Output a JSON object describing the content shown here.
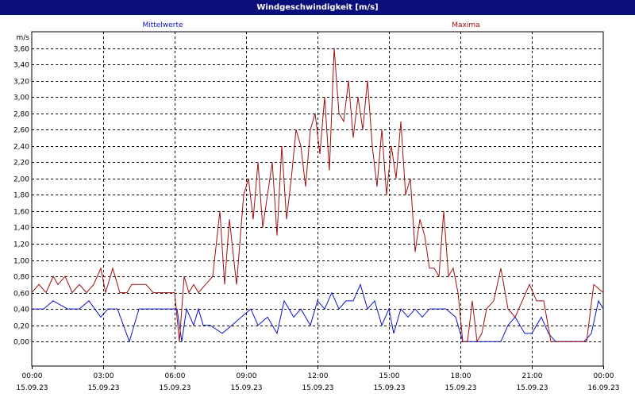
{
  "title": "Windgeschwindigkeit [m/s]",
  "colors": {
    "titlebar": "#0b0f7a",
    "mittelwerte": "#0a14c8",
    "maxima": "#a01010",
    "grid": "#000000"
  },
  "chart_data": {
    "type": "line",
    "title": "Windgeschwindigkeit [m/s]",
    "ylabel": "m/s",
    "xlabel": "",
    "ylim": [
      -0.3,
      3.8
    ],
    "xlim": [
      0,
      24
    ],
    "grid": true,
    "legend_placement": "top",
    "yticks": [
      "0,00",
      "0,20",
      "0,40",
      "0,60",
      "0,80",
      "1,00",
      "1,20",
      "1,40",
      "1,60",
      "1,80",
      "2,00",
      "2,20",
      "2,40",
      "2,60",
      "2,80",
      "3,00",
      "3,20",
      "3,40",
      "3,60"
    ],
    "ytick_values": [
      0,
      0.2,
      0.4,
      0.6,
      0.8,
      1.0,
      1.2,
      1.4,
      1.6,
      1.8,
      2.0,
      2.2,
      2.4,
      2.6,
      2.8,
      3.0,
      3.2,
      3.4,
      3.6
    ],
    "xticks": [
      {
        "time": "00:00",
        "date": "15.09.23",
        "hour": 0
      },
      {
        "time": "03:00",
        "date": "15.09.23",
        "hour": 3
      },
      {
        "time": "06:00",
        "date": "15.09.23",
        "hour": 6
      },
      {
        "time": "09:00",
        "date": "15.09.23",
        "hour": 9
      },
      {
        "time": "12:00",
        "date": "15.09.23",
        "hour": 12
      },
      {
        "time": "15:00",
        "date": "15.09.23",
        "hour": 15
      },
      {
        "time": "18:00",
        "date": "15.09.23",
        "hour": 18
      },
      {
        "time": "21:00",
        "date": "15.09.23",
        "hour": 21
      },
      {
        "time": "00:00",
        "date": "16.09.23",
        "hour": 24
      }
    ],
    "series": [
      {
        "name": "Mittelwerte",
        "color": "#0a14c8",
        "x": [
          0,
          0.5,
          0.9,
          1.5,
          2.0,
          2.4,
          2.9,
          3.2,
          3.6,
          4.1,
          4.5,
          4.8,
          5.2,
          5.6,
          6.1,
          6.3,
          6.5,
          6.8,
          7.0,
          7.2,
          7.5,
          8.0,
          8.4,
          8.8,
          9.2,
          9.5,
          9.9,
          10.3,
          10.6,
          11.0,
          11.3,
          11.7,
          12.0,
          12.3,
          12.6,
          12.9,
          13.2,
          13.5,
          13.8,
          14.1,
          14.4,
          14.7,
          15.0,
          15.2,
          15.5,
          15.8,
          16.1,
          16.4,
          16.7,
          17.0,
          17.4,
          17.8,
          18.1,
          18.4,
          18.8,
          19.3,
          19.7,
          20.0,
          20.3,
          20.7,
          21.0,
          21.4,
          21.7,
          22.0,
          22.4,
          22.8,
          23.2,
          23.5,
          23.8,
          24.0
        ],
        "values": [
          0.4,
          0.4,
          0.5,
          0.4,
          0.4,
          0.5,
          0.3,
          0.4,
          0.4,
          0.0,
          0.4,
          0.4,
          0.4,
          0.4,
          0.4,
          0.0,
          0.4,
          0.2,
          0.4,
          0.2,
          0.2,
          0.1,
          0.2,
          0.3,
          0.4,
          0.2,
          0.3,
          0.1,
          0.5,
          0.3,
          0.4,
          0.2,
          0.5,
          0.4,
          0.6,
          0.4,
          0.5,
          0.5,
          0.7,
          0.4,
          0.5,
          0.2,
          0.4,
          0.1,
          0.4,
          0.3,
          0.4,
          0.3,
          0.4,
          0.4,
          0.4,
          0.3,
          0.0,
          0.0,
          0.0,
          0.0,
          0.0,
          0.2,
          0.3,
          0.1,
          0.1,
          0.3,
          0.1,
          0.0,
          0.0,
          0.0,
          0.0,
          0.1,
          0.5,
          0.4
        ]
      },
      {
        "name": "Maxima",
        "color": "#a01010",
        "x": [
          0,
          0.3,
          0.6,
          0.9,
          1.1,
          1.4,
          1.7,
          2.0,
          2.3,
          2.6,
          2.9,
          3.1,
          3.4,
          3.7,
          4.0,
          4.2,
          4.5,
          4.8,
          5.1,
          5.4,
          5.7,
          6.0,
          6.2,
          6.4,
          6.6,
          6.8,
          7.0,
          7.3,
          7.6,
          7.9,
          8.1,
          8.3,
          8.6,
          8.9,
          9.1,
          9.3,
          9.5,
          9.7,
          9.9,
          10.1,
          10.3,
          10.5,
          10.7,
          10.9,
          11.1,
          11.3,
          11.5,
          11.7,
          11.9,
          12.1,
          12.3,
          12.5,
          12.7,
          12.9,
          13.1,
          13.3,
          13.5,
          13.7,
          13.9,
          14.1,
          14.3,
          14.5,
          14.7,
          14.9,
          15.1,
          15.3,
          15.5,
          15.7,
          15.9,
          16.1,
          16.3,
          16.5,
          16.7,
          16.9,
          17.1,
          17.3,
          17.5,
          17.7,
          17.9,
          18.1,
          18.3,
          18.5,
          18.7,
          18.9,
          19.1,
          19.4,
          19.7,
          20.0,
          20.3,
          20.6,
          20.9,
          21.2,
          21.5,
          21.8,
          22.1,
          22.4,
          22.7,
          23.0,
          23.3,
          23.6,
          24.0
        ],
        "values": [
          0.6,
          0.7,
          0.6,
          0.8,
          0.7,
          0.8,
          0.6,
          0.7,
          0.6,
          0.7,
          0.9,
          0.6,
          0.9,
          0.6,
          0.6,
          0.7,
          0.7,
          0.7,
          0.6,
          0.6,
          0.6,
          0.6,
          0.0,
          0.8,
          0.6,
          0.7,
          0.6,
          0.7,
          0.8,
          1.6,
          0.7,
          1.5,
          0.7,
          1.8,
          2.0,
          1.5,
          2.2,
          1.4,
          1.8,
          2.2,
          1.3,
          2.4,
          1.5,
          2.0,
          2.6,
          2.4,
          1.9,
          2.6,
          2.8,
          2.3,
          3.0,
          2.1,
          3.6,
          2.8,
          2.7,
          3.2,
          2.5,
          3.0,
          2.6,
          3.2,
          2.4,
          1.9,
          2.6,
          1.8,
          2.4,
          2.0,
          2.7,
          1.8,
          2.0,
          1.1,
          1.5,
          1.3,
          0.9,
          0.9,
          0.8,
          1.6,
          0.8,
          0.9,
          0.6,
          0.0,
          0.0,
          0.5,
          0.0,
          0.1,
          0.4,
          0.5,
          0.9,
          0.4,
          0.3,
          0.5,
          0.7,
          0.5,
          0.5,
          0.0,
          0.0,
          0.0,
          0.0,
          0.0,
          0.0,
          0.7,
          0.6
        ]
      }
    ]
  }
}
